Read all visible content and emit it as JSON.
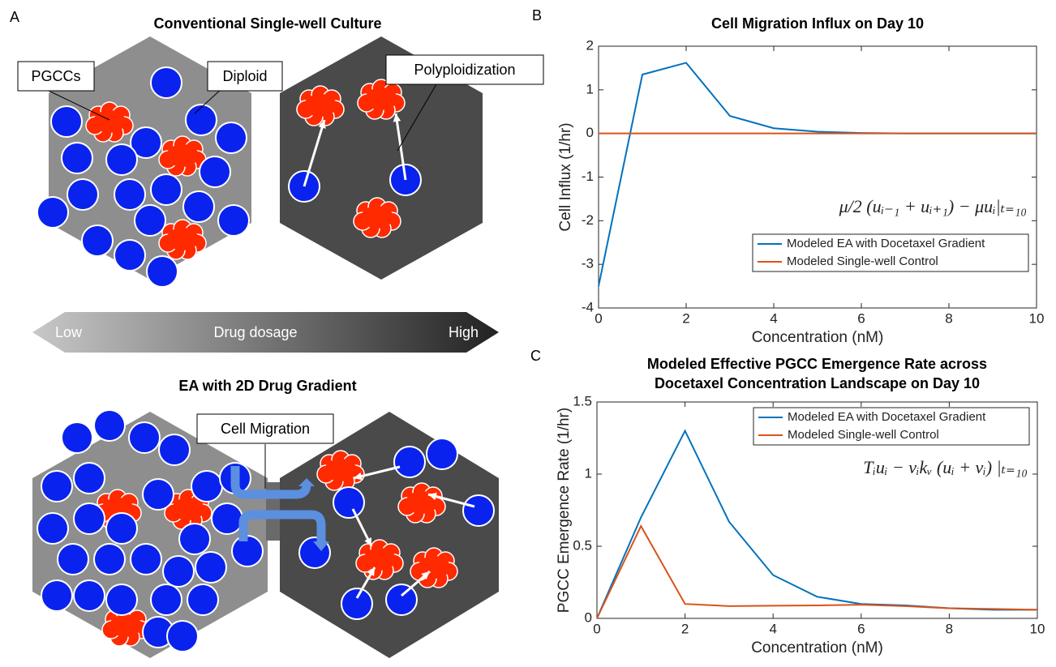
{
  "panel_a": {
    "label": "A",
    "top_title": "Conventional Single-well Culture",
    "bottom_title": "EA with 2D Drug Gradient",
    "callouts": [
      "PGCCs",
      "Diploid",
      "Polyploidization",
      "Cell Migration"
    ],
    "dose_low": "Low",
    "dose_label": "Drug dosage",
    "dose_high": "High"
  },
  "chart_data": [
    {
      "type": "line",
      "panel_label": "B",
      "title": [
        "Cell Migration Influx on Day 10"
      ],
      "xlabel": "Concentration (nM)",
      "ylabel": "Cell Influx (1/hr)",
      "annotation": "μ/2 (uᵢ₋₁ + uᵢ₊₁) − μuᵢ|ₜ₌₁₀",
      "x": [
        0,
        1,
        2,
        3,
        4,
        5,
        6,
        7,
        8,
        9,
        10
      ],
      "series": [
        {
          "name": "Modeled EA with Docetaxel Gradient",
          "color": "#0072bd",
          "values": [
            -3.5,
            1.35,
            1.62,
            0.4,
            0.12,
            0.04,
            0.01,
            0,
            0,
            0,
            0
          ]
        },
        {
          "name": "Modeled Single-well Control",
          "color": "#d95319",
          "values": [
            0,
            0,
            0,
            0,
            0,
            0,
            0,
            0,
            0,
            0,
            0
          ]
        }
      ],
      "xlim": [
        0,
        10
      ],
      "xticks": [
        0,
        2,
        4,
        6,
        8,
        10
      ],
      "ylim": [
        -4,
        2
      ],
      "yticks": [
        -4,
        -3,
        -2,
        -1,
        0,
        1,
        2
      ],
      "legend": "lower right"
    },
    {
      "type": "line",
      "panel_label": "C",
      "title": [
        "Modeled Effective PGCC Emergence Rate across",
        "Docetaxel Concentration Landscape on Day 10"
      ],
      "xlabel": "Concentration (nM)",
      "ylabel": "PGCC Emergence Rate (1/hr)",
      "annotation": "Tᵢuᵢ − vᵢkᵥ (uᵢ + vᵢ) |ₜ₌₁₀",
      "x": [
        0,
        1,
        2,
        3,
        4,
        5,
        6,
        7,
        8,
        9,
        10
      ],
      "series": [
        {
          "name": "Modeled EA with Docetaxel Gradient",
          "color": "#0072bd",
          "values": [
            0,
            0.7,
            1.3,
            0.67,
            0.3,
            0.15,
            0.1,
            0.09,
            0.07,
            0.06,
            0.06
          ]
        },
        {
          "name": "Modeled Single-well Control",
          "color": "#d95319",
          "values": [
            0,
            0.64,
            0.1,
            0.085,
            0.088,
            0.09,
            0.095,
            0.085,
            0.07,
            0.065,
            0.06
          ]
        }
      ],
      "xlim": [
        0,
        10
      ],
      "xticks": [
        0,
        2,
        4,
        6,
        8,
        10
      ],
      "ylim": [
        0,
        1.5
      ],
      "yticks": [
        0,
        0.5,
        1,
        1.5
      ],
      "legend": "upper right"
    }
  ]
}
